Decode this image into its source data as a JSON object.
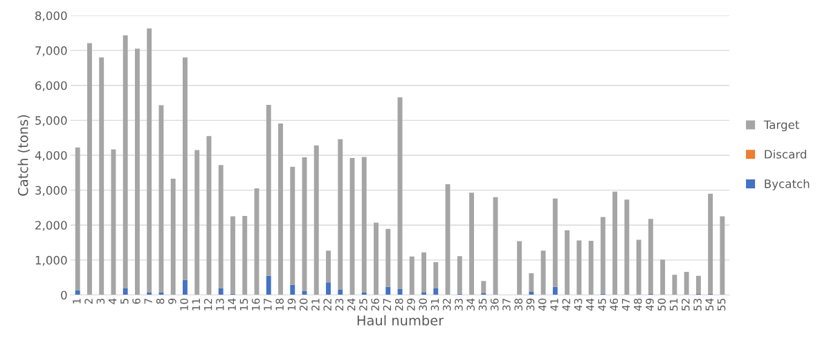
{
  "chart_data": {
    "type": "bar",
    "stacked": true,
    "xlabel": "Haul number",
    "ylabel": "Catch (tons)",
    "categories": [
      "1",
      "2",
      "3",
      "4",
      "5",
      "6",
      "7",
      "8",
      "9",
      "10",
      "11",
      "12",
      "13",
      "14",
      "15",
      "16",
      "17",
      "18",
      "19",
      "20",
      "21",
      "22",
      "23",
      "24",
      "25",
      "26",
      "27",
      "28",
      "29",
      "30",
      "31",
      "32",
      "33",
      "34",
      "35",
      "36",
      "37",
      "38",
      "39",
      "40",
      "41",
      "42",
      "43",
      "44",
      "45",
      "46",
      "47",
      "48",
      "49",
      "50",
      "51",
      "52",
      "53",
      "54",
      "55"
    ],
    "series": [
      {
        "name": "Bycatch",
        "color": "#4472c4",
        "values": [
          140,
          0,
          0,
          0,
          190,
          10,
          70,
          70,
          10,
          430,
          0,
          10,
          190,
          40,
          0,
          0,
          550,
          0,
          290,
          110,
          0,
          360,
          150,
          0,
          70,
          0,
          230,
          170,
          0,
          70,
          190,
          0,
          40,
          0,
          50,
          0,
          0,
          0,
          90,
          20,
          230,
          0,
          0,
          0,
          40,
          0,
          0,
          0,
          30,
          0,
          0,
          0,
          30,
          30,
          0
        ]
      },
      {
        "name": "Discard",
        "color": "#ed7d31",
        "values": [
          0,
          0,
          0,
          0,
          0,
          0,
          0,
          0,
          0,
          0,
          0,
          0,
          0,
          0,
          0,
          0,
          0,
          0,
          0,
          0,
          0,
          0,
          0,
          0,
          0,
          0,
          0,
          0,
          0,
          0,
          0,
          0,
          0,
          0,
          0,
          0,
          0,
          0,
          0,
          0,
          0,
          0,
          0,
          0,
          0,
          0,
          0,
          0,
          0,
          0,
          0,
          0,
          0,
          0,
          0
        ]
      },
      {
        "name": "Target",
        "color": "#a5a5a5",
        "values": [
          4080,
          7210,
          6800,
          4170,
          7240,
          7040,
          7560,
          5360,
          3320,
          6370,
          4150,
          4540,
          3530,
          2210,
          2260,
          3050,
          4890,
          4910,
          3380,
          3830,
          4280,
          910,
          4310,
          3920,
          3880,
          2070,
          1660,
          5490,
          1100,
          1150,
          750,
          3170,
          1070,
          2930,
          350,
          2800,
          0,
          1540,
          530,
          1250,
          2530,
          1850,
          1560,
          1550,
          2190,
          2960,
          2730,
          1580,
          2150,
          1010,
          580,
          660,
          520,
          2870,
          2250
        ]
      }
    ],
    "ylim": [
      0,
      8000
    ],
    "yticks": [
      0,
      {
        "value": 1000,
        "label": "1,000"
      },
      {
        "value": 2000,
        "label": "2,000"
      },
      {
        "value": 3000,
        "label": "3,000"
      },
      {
        "value": 4000,
        "label": "4,000"
      },
      {
        "value": 5000,
        "label": "5,000"
      },
      {
        "value": 6000,
        "label": "6,000"
      },
      {
        "value": 7000,
        "label": "7,000"
      },
      {
        "value": 8000,
        "label": "8,000"
      }
    ],
    "grid": "y",
    "legend": "right"
  }
}
